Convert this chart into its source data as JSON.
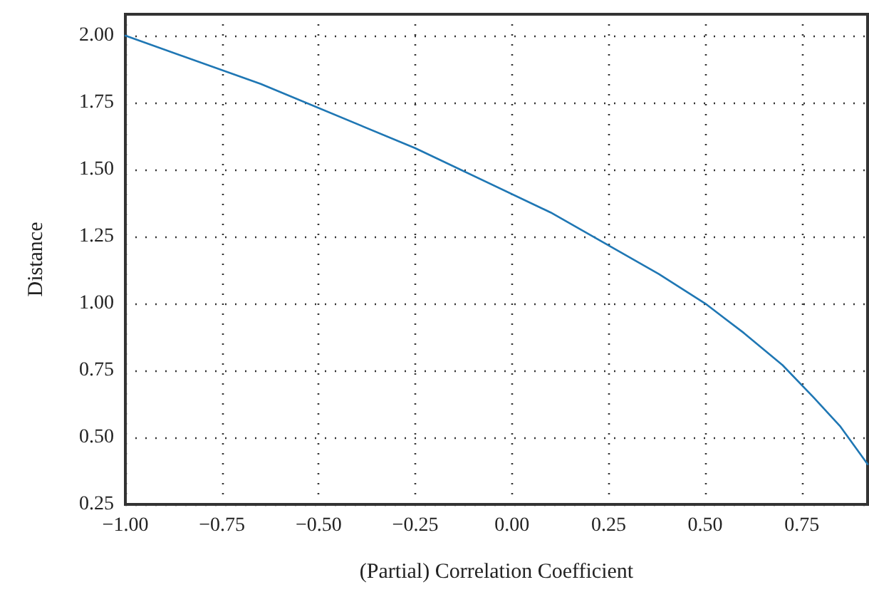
{
  "chart_data": {
    "type": "line",
    "xlabel": "(Partial) Correlation Coefficient",
    "ylabel": "Distance",
    "series": [
      {
        "color": "#1f77b4",
        "x": [
          -1.0,
          -0.65,
          -0.25,
          0.1,
          0.38,
          0.5,
          0.6,
          0.7,
          0.78,
          0.85,
          0.92
        ],
        "values": [
          2.0,
          1.82,
          1.58,
          1.34,
          1.11,
          1.0,
          0.89,
          0.77,
          0.65,
          0.54,
          0.4
        ]
      }
    ],
    "xlim": [
      -1.0,
      0.92
    ],
    "xticks": [
      {
        "value": -1,
        "label": "−1.00"
      },
      {
        "value": -0.75,
        "label": "−0.75"
      },
      {
        "value": -0.5,
        "label": "−0.50"
      },
      {
        "value": -0.25,
        "label": "−0.25"
      },
      {
        "value": 0,
        "label": "0.00"
      },
      {
        "value": 0.25,
        "label": "0.25"
      },
      {
        "value": 0.5,
        "label": "0.50"
      },
      {
        "value": 0.75,
        "label": "0.75"
      }
    ],
    "ylim": [
      0.25,
      2.08
    ],
    "yticks": [
      {
        "value": 0.25,
        "label": "0.25"
      },
      {
        "value": 0.5,
        "label": "0.50"
      },
      {
        "value": 0.75,
        "label": "0.75"
      },
      {
        "value": 1,
        "label": "1.00"
      },
      {
        "value": 1.25,
        "label": "1.25"
      },
      {
        "value": 1.5,
        "label": "1.50"
      },
      {
        "value": 1.75,
        "label": "1.75"
      },
      {
        "value": 2,
        "label": "2.00"
      }
    ],
    "grid": true,
    "marker": "none",
    "line_style": "solid"
  }
}
